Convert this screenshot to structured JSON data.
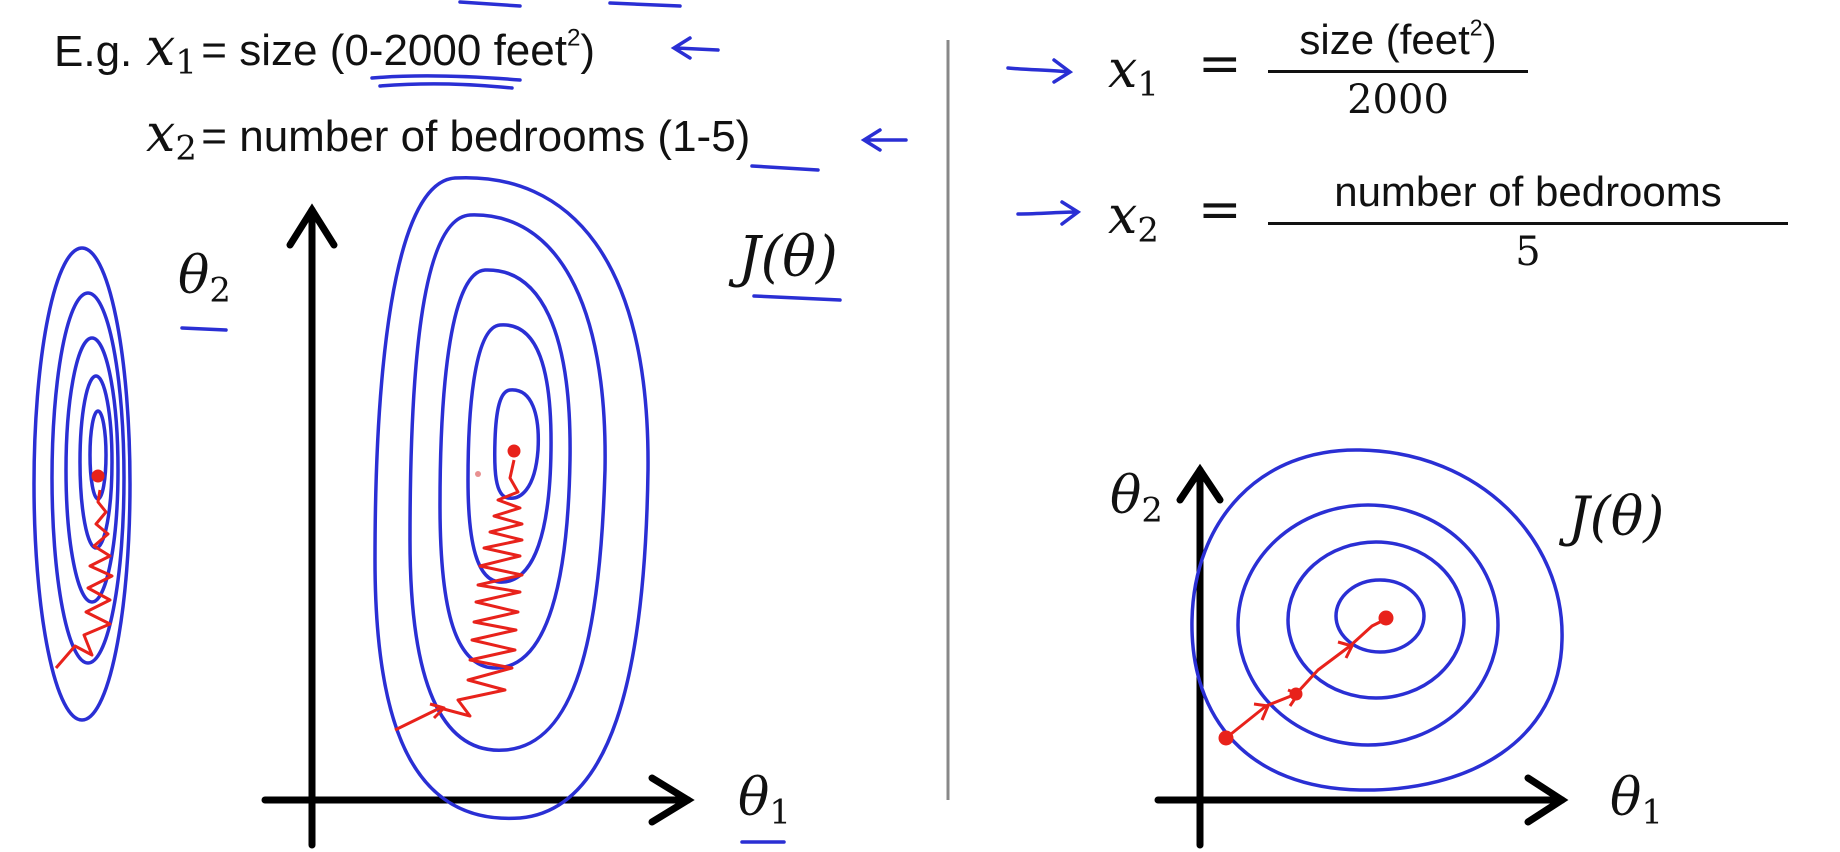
{
  "left": {
    "eg_label": "E.g.",
    "x1_var": "x",
    "x1_sub": "1",
    "x1_text": "= size (0-2000 feet",
    "x1_sup": "2",
    "x1_close": ")",
    "x2_var": "x",
    "x2_sub": "2",
    "x2_text": "= number of bedrooms (1-5)",
    "theta2_label": "θ",
    "theta2_sub": "2",
    "theta1_label": "θ",
    "theta1_sub": "1",
    "cost_label": "J(θ)"
  },
  "right": {
    "x1_var": "x",
    "x1_sub": "1",
    "x1_eq": "=",
    "x1_num": "size (feet",
    "x1_num_sup": "2",
    "x1_num_close": ")",
    "x1_den": "2000",
    "x2_var": "x",
    "x2_sub": "2",
    "x2_eq": "=",
    "x2_num": "number of bedrooms",
    "x2_den": "5",
    "theta2_label": "θ",
    "theta2_sub": "2",
    "theta1_label": "θ",
    "theta1_sub": "1",
    "cost_label": "J(θ)"
  },
  "colors": {
    "contour": "#2a2fd4",
    "descent": "#e8221b",
    "axis": "#000000",
    "divider": "#888888"
  }
}
